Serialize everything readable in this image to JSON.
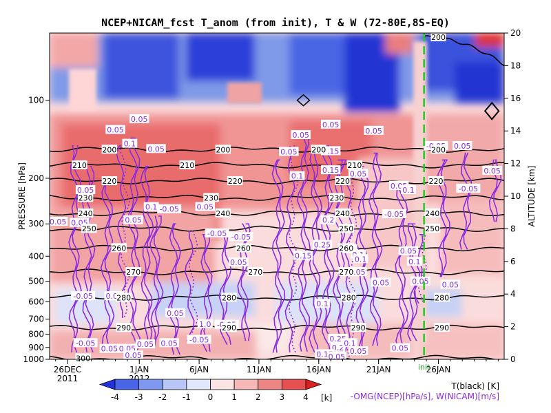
{
  "chart_data": {
    "type": "heatmap",
    "title": "NCEP+NICAM_fcst T_anom (from init), T & W   (72-80E,8S-EQ)",
    "left_axis": {
      "label": "PRESSURE [hPa]",
      "ticks": [
        100,
        200,
        300,
        400,
        500,
        600,
        700,
        800,
        900,
        1000
      ],
      "range": [
        1000,
        55
      ]
    },
    "right_axis": {
      "label": "ALTITUDE [km]",
      "ticks": [
        0,
        2,
        4,
        6,
        8,
        10,
        12,
        14,
        16,
        18,
        20
      ],
      "range": [
        0,
        20
      ]
    },
    "x_axis": {
      "ticks": [
        "26DEC",
        "1JAN",
        "6JAN",
        "11JAN",
        "16JAN",
        "21JAN",
        "26JAN"
      ],
      "tick_days": [
        0,
        6,
        11,
        16,
        21,
        26,
        31
      ],
      "year_labels": [
        "2011",
        "2012"
      ],
      "range_days": [
        -1.5,
        36.5
      ]
    },
    "init_label": "init",
    "init_day": 29.8,
    "colorbar": {
      "ticks": [
        "-4",
        "-3",
        "-2",
        "-1",
        "0",
        "1",
        "2",
        "3",
        "4"
      ],
      "unit": "[k]",
      "colors": [
        "#2233dd",
        "#4a64e8",
        "#8099f0",
        "#b7c6f5",
        "#e2e8fb",
        "#fbe4e4",
        "#f6b7b7",
        "#ee8585",
        "#e65050",
        "#dc2020"
      ]
    },
    "legend": {
      "temperature": "T(black) [K]",
      "omega": "-OMG(NCEP)[hPa/s], W(NICAM)[m/s]"
    },
    "temperature_contours": [
      {
        "level": 200,
        "pressure": 155,
        "labels": [
          {
            "text": "200",
            "day": 3.5
          },
          {
            "text": "200",
            "day": 13
          },
          {
            "text": "200",
            "day": 21
          },
          {
            "text": "200",
            "day": 31
          }
        ]
      },
      {
        "level": 210,
        "pressure": 178,
        "labels": [
          {
            "text": "210",
            "day": 1
          },
          {
            "text": "210",
            "day": 10
          },
          {
            "text": "210",
            "day": 24
          }
        ]
      },
      {
        "level": 220,
        "pressure": 205,
        "labels": [
          {
            "text": "220",
            "day": 3.5
          },
          {
            "text": "220",
            "day": 14
          },
          {
            "text": "220",
            "day": 23
          },
          {
            "text": "220",
            "day": 30.8
          }
        ]
      },
      {
        "level": 230,
        "pressure": 238,
        "labels": [
          {
            "text": "230",
            "day": 1.5
          },
          {
            "text": "230",
            "day": 12
          },
          {
            "text": "230",
            "day": 22.5
          }
        ]
      },
      {
        "level": 240,
        "pressure": 273,
        "labels": [
          {
            "text": "240",
            "day": 1.5
          },
          {
            "text": "240",
            "day": 13
          },
          {
            "text": "240",
            "day": 23
          },
          {
            "text": "240",
            "day": 30.5
          }
        ]
      },
      {
        "level": 250,
        "pressure": 313,
        "labels": [
          {
            "text": "250",
            "day": 1.8
          },
          {
            "text": "250",
            "day": 23.3
          },
          {
            "text": "250",
            "day": 30.5
          }
        ]
      },
      {
        "level": 260,
        "pressure": 372,
        "labels": [
          {
            "text": "260",
            "day": 4.3
          },
          {
            "text": "260",
            "day": 14.7
          },
          {
            "text": "260",
            "day": 23.3
          }
        ]
      },
      {
        "level": 270,
        "pressure": 460,
        "labels": [
          {
            "text": "270",
            "day": 5.5
          },
          {
            "text": "270",
            "day": 15.7
          },
          {
            "text": "270",
            "day": 23.3
          }
        ]
      },
      {
        "level": 280,
        "pressure": 578,
        "labels": [
          {
            "text": "280",
            "day": 4.7
          },
          {
            "text": "280",
            "day": 13.5
          },
          {
            "text": "280",
            "day": 23.5
          },
          {
            "text": "280",
            "day": 31.3
          }
        ]
      },
      {
        "level": 290,
        "pressure": 755,
        "labels": [
          {
            "text": "290",
            "day": 4.7
          },
          {
            "text": "290",
            "day": 13.5
          },
          {
            "text": "290",
            "day": 24.3
          },
          {
            "text": "290",
            "day": 31.3
          }
        ]
      },
      {
        "level": 300,
        "pressure": 990,
        "labels": [
          {
            "text": "300",
            "day": 1.3
          }
        ]
      }
    ],
    "omega_labels": [
      {
        "text": "0.05",
        "day": 6,
        "p": 118
      },
      {
        "text": "0.05",
        "day": 4,
        "p": 130
      },
      {
        "text": "0.1",
        "day": 5.2,
        "p": 147
      },
      {
        "text": "0.05",
        "day": 7.4,
        "p": 154
      },
      {
        "text": "0.05",
        "day": 1.5,
        "p": 222
      },
      {
        "text": "0.1",
        "day": 7.0,
        "p": 258
      },
      {
        "text": "-0.05",
        "day": 8.5,
        "p": 263
      },
      {
        "text": "0.05",
        "day": 11.5,
        "p": 258
      },
      {
        "text": "0.05",
        "day": -0.8,
        "p": 294
      },
      {
        "text": "0.05",
        "day": 1.0,
        "p": 297
      },
      {
        "text": "0.05",
        "day": 5.5,
        "p": 290
      },
      {
        "text": "-0.05",
        "day": 12.5,
        "p": 326
      },
      {
        "text": "-0.05",
        "day": 14.5,
        "p": 337
      },
      {
        "text": "0.05",
        "day": 14.3,
        "p": 422
      },
      {
        "text": "-0.05",
        "day": 1.3,
        "p": 570
      },
      {
        "text": "0.05",
        "day": 3.9,
        "p": 570
      },
      {
        "text": "0.05",
        "day": 9.0,
        "p": 663
      },
      {
        "text": "1.0",
        "day": 11.5,
        "p": 731
      },
      {
        "text": "-0.05",
        "day": 13.3,
        "p": 735
      },
      {
        "text": "-0.05",
        "day": 11.0,
        "p": 840
      },
      {
        "text": "-0.05",
        "day": 1.5,
        "p": 865
      },
      {
        "text": "0.05",
        "day": 3.5,
        "p": 910
      },
      {
        "text": "0.05",
        "day": 5.0,
        "p": 910
      },
      {
        "text": "0.05",
        "day": 6.5,
        "p": 875
      },
      {
        "text": "0.05",
        "day": 8.5,
        "p": 865
      },
      {
        "text": "0.05",
        "day": 5.5,
        "p": 965
      },
      {
        "text": "0.05",
        "day": 22.0,
        "p": 124
      },
      {
        "text": "0.05",
        "day": 25.6,
        "p": 131
      },
      {
        "text": "0.05",
        "day": 19.5,
        "p": 136
      },
      {
        "text": "0.15",
        "day": 22.0,
        "p": 157
      },
      {
        "text": "0.05",
        "day": 18.5,
        "p": 158
      },
      {
        "text": "0.1",
        "day": 19.2,
        "p": 196
      },
      {
        "text": "0.15",
        "day": 22.0,
        "p": 186
      },
      {
        "text": "0.05",
        "day": 24.3,
        "p": 192
      },
      {
        "text": "0.05",
        "day": 27.7,
        "p": 214
      },
      {
        "text": "0.1",
        "day": 28.5,
        "p": 222
      },
      {
        "text": "0.2",
        "day": 21.8,
        "p": 290
      },
      {
        "text": "-0.05",
        "day": 27.3,
        "p": 275
      },
      {
        "text": "0.25",
        "day": 21.3,
        "p": 361
      },
      {
        "text": "0.1",
        "day": 23.6,
        "p": 375
      },
      {
        "text": "0.1",
        "day": 24.3,
        "p": 394
      },
      {
        "text": "0.15",
        "day": 19.7,
        "p": 398
      },
      {
        "text": "0.05",
        "day": 28.5,
        "p": 382
      },
      {
        "text": "0.1",
        "day": 24.5,
        "p": 410
      },
      {
        "text": "0.05",
        "day": 24.2,
        "p": 460
      },
      {
        "text": "0.05",
        "day": 26.2,
        "p": 505
      },
      {
        "text": "0.1",
        "day": 21.3,
        "p": 610
      },
      {
        "text": "0.25",
        "day": 22.6,
        "p": 832
      },
      {
        "text": "0.2",
        "day": 22.6,
        "p": 900
      },
      {
        "text": "0.05",
        "day": 27.8,
        "p": 905
      },
      {
        "text": "0.05",
        "day": 24.3,
        "p": 930
      },
      {
        "text": "0.15",
        "day": 21.5,
        "p": 955
      },
      {
        "text": "0.05",
        "day": 22.5,
        "p": 975
      },
      {
        "text": "0.1",
        "day": 23.6,
        "p": 865
      },
      {
        "text": "0.1",
        "day": 29.0,
        "p": 420
      },
      {
        "text": "0.05",
        "day": 29.5,
        "p": 500
      },
      {
        "text": "-0.05",
        "day": 30.8,
        "p": 150
      },
      {
        "text": "0.05",
        "day": 33.0,
        "p": 150
      },
      {
        "text": "0.05",
        "day": 35.5,
        "p": 187
      },
      {
        "text": "-0.05",
        "day": 33.5,
        "p": 219
      },
      {
        "text": "0.05",
        "day": 32.0,
        "p": 515
      }
    ],
    "upper_200_labels": [
      {
        "text": "200",
        "day": 31.0,
        "p": 57
      }
    ]
  }
}
